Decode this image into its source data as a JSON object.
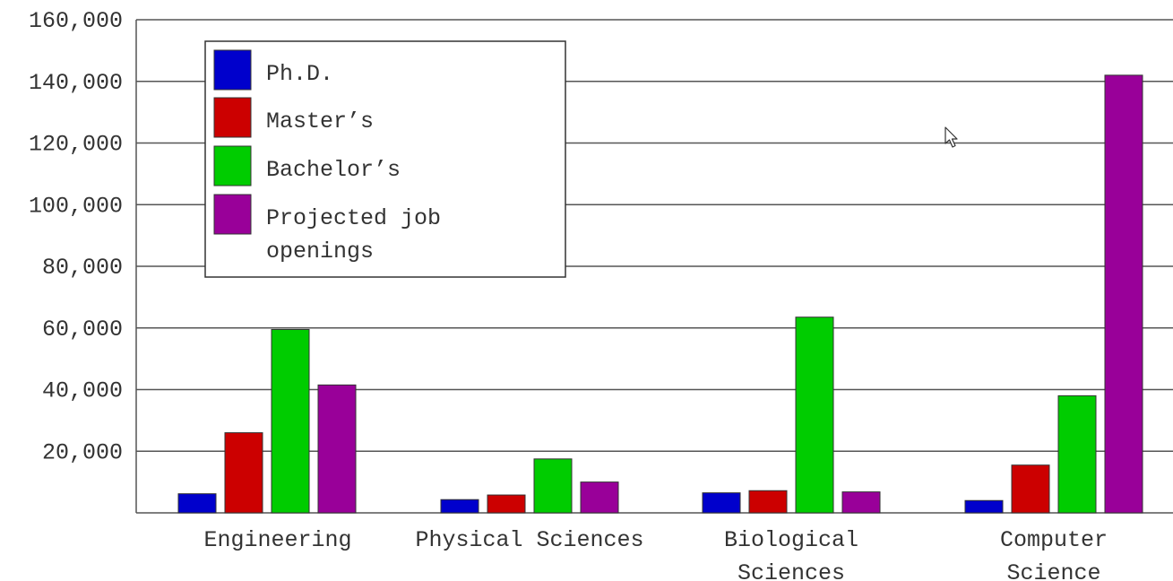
{
  "chart_data": {
    "type": "bar",
    "title": "",
    "xlabel": "",
    "ylabel": "",
    "ylim": [
      0,
      160000
    ],
    "yticks": [
      20000,
      40000,
      60000,
      80000,
      100000,
      120000,
      140000,
      160000
    ],
    "ytick_labels": [
      "20,000",
      "40,000",
      "60,000",
      "80,000",
      "100,000",
      "120,000",
      "140,000",
      "160,000"
    ],
    "grid": true,
    "legend_position": "top-left",
    "categories": [
      [
        "Engineering"
      ],
      [
        "Physical Sciences"
      ],
      [
        "Biological",
        "Sciences"
      ],
      [
        "Computer",
        "Science"
      ]
    ],
    "series": [
      {
        "name": "Ph.D.",
        "name_lines": [
          "Ph.D."
        ],
        "color": "#0000cc",
        "values": [
          6200,
          4300,
          6500,
          4000
        ]
      },
      {
        "name": "Master’s",
        "name_lines": [
          "Master’s"
        ],
        "color": "#cc0000",
        "values": [
          26000,
          5800,
          7200,
          15500
        ]
      },
      {
        "name": "Bachelor’s",
        "name_lines": [
          "Bachelor’s"
        ],
        "color": "#00cc00",
        "values": [
          59500,
          17500,
          63500,
          38000
        ]
      },
      {
        "name": "Projected job openings",
        "name_lines": [
          "Projected job",
          "openings"
        ],
        "color": "#990099",
        "values": [
          41500,
          10000,
          6800,
          142000
        ]
      }
    ]
  },
  "overlay": {
    "cursor_icon": "mouse-pointer-icon"
  }
}
